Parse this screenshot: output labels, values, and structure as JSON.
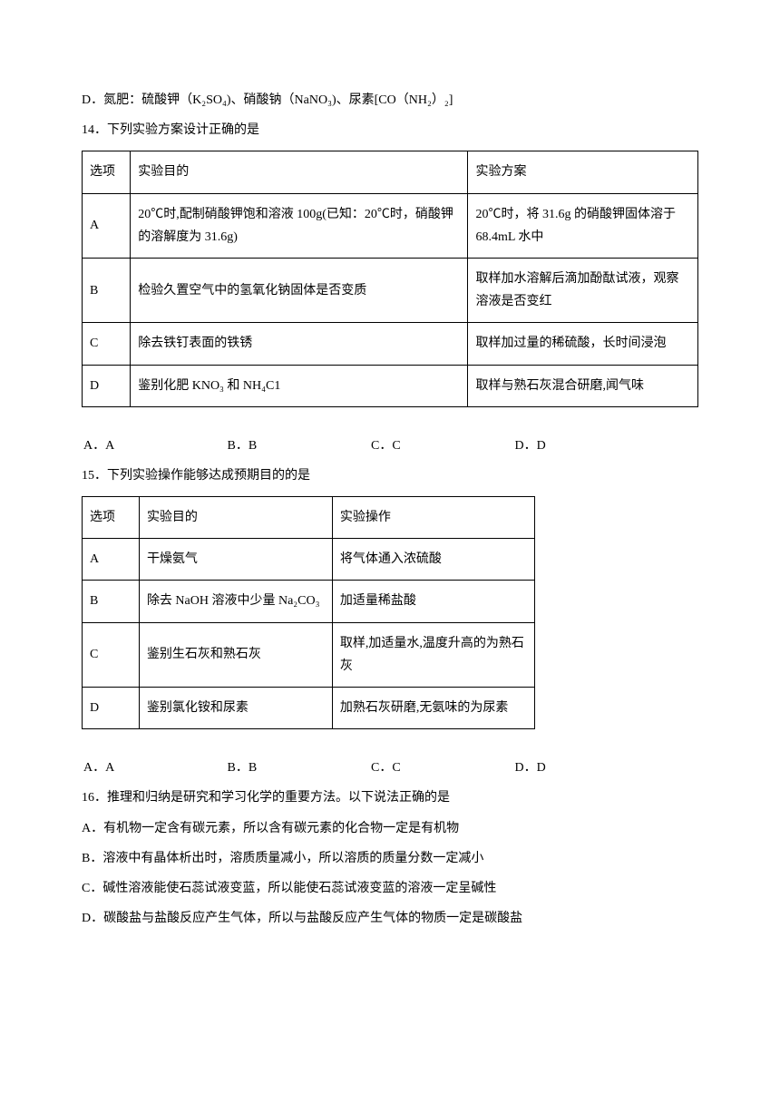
{
  "line_d": "D．氮肥：硫酸钾（K₂SO₄)、硝酸钠（NaNO₃)、尿素[CO（NH₂）₂]",
  "q14": {
    "stem": "14．下列实验方案设计正确的是",
    "header": {
      "c0": "选项",
      "c1": "实验目的",
      "c2": "实验方案"
    },
    "rows": [
      {
        "c0": "A",
        "c1": "20℃时,配制硝酸钾饱和溶液 100g(已知：20℃时，硝酸钾的溶解度为 31.6g)",
        "c2": "20℃时，将 31.6g 的硝酸钾固体溶于68.4mL 水中"
      },
      {
        "c0": "B",
        "c1": "检验久置空气中的氢氧化钠固体是否变质",
        "c2": "取样加水溶解后滴加酚酞试液，观察溶液是否变红"
      },
      {
        "c0": "C",
        "c1": "除去铁钉表面的铁锈",
        "c2": "取样加过量的稀硫酸，长时间浸泡"
      },
      {
        "c0": "D",
        "c1": "鉴别化肥 KNO₃ 和 NH₄C1",
        "c2": "取样与熟石灰混合研磨,闻气味"
      }
    ],
    "opts": {
      "a": "A．A",
      "b": "B．B",
      "c": "C．C",
      "d": "D．D"
    }
  },
  "q15": {
    "stem": "15．下列实验操作能够达成预期目的的是",
    "header": {
      "c0": "选项",
      "c1": "实验目的",
      "c2": "实验操作"
    },
    "rows": [
      {
        "c0": "A",
        "c1": "干燥氨气",
        "c2": "将气体通入浓硫酸"
      },
      {
        "c0": "B",
        "c1": "除去 NaOH 溶液中少量 Na₂CO₃",
        "c2": "加适量稀盐酸"
      },
      {
        "c0": "C",
        "c1": "鉴别生石灰和熟石灰",
        "c2": "取样,加适量水,温度升高的为熟石灰"
      },
      {
        "c0": "D",
        "c1": "鉴别氯化铵和尿素",
        "c2": "加熟石灰研磨,无氨味的为尿素"
      }
    ],
    "opts": {
      "a": "A．A",
      "b": "B．B",
      "c": "C．C",
      "d": "D．D"
    }
  },
  "q16": {
    "stem": "16．推理和归纳是研究和学习化学的重要方法。以下说法正确的是",
    "a": "A．有机物一定含有碳元素，所以含有碳元素的化合物一定是有机物",
    "b": "B．溶液中有晶体析出时，溶质质量减小，所以溶质的质量分数一定减小",
    "c": "C．碱性溶液能使石蕊试液变蓝，所以能使石蕊试液变蓝的溶液一定呈碱性",
    "d": "D．碳酸盐与盐酸反应产生气体，所以与盐酸反应产生气体的物质一定是碳酸盐"
  }
}
